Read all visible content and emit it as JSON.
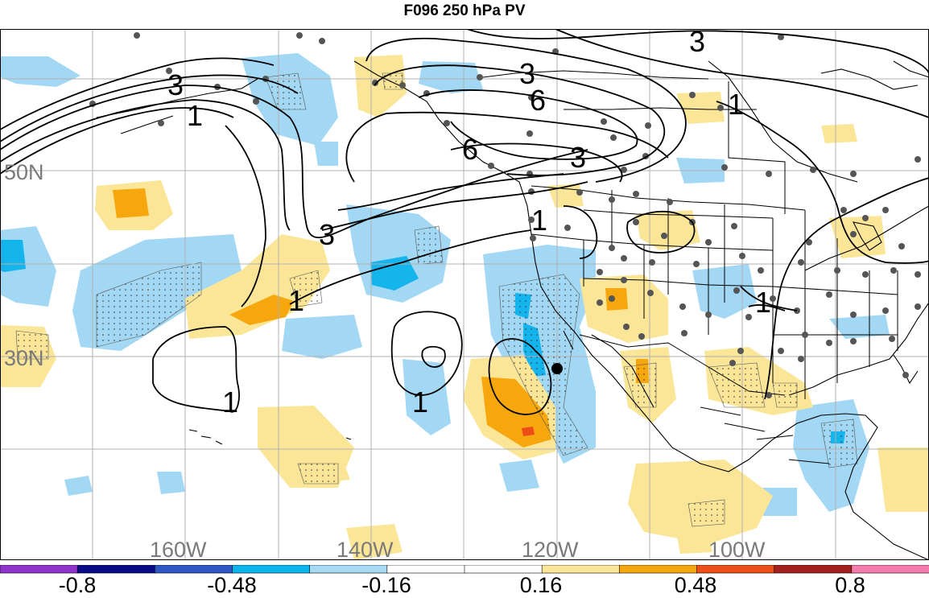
{
  "title": "F096 250 hPa PV",
  "map": {
    "lat_labels": [
      "50N",
      "30N"
    ],
    "lon_labels": [
      "160W",
      "140W",
      "120W",
      "100W"
    ],
    "contour_labels": [
      "3",
      "1",
      "3",
      "6",
      "3",
      "6",
      "3",
      "1",
      "1",
      "3",
      "1",
      "1",
      "1",
      "1"
    ],
    "shading": {
      "positive_light": "#fbe698",
      "positive_mid": "#f7a70e",
      "positive_strong": "#ee4d18",
      "negative_light": "#a3d8f4",
      "negative_mid": "#14b4ec"
    }
  },
  "colorbar": {
    "colors": [
      "#8f35cc",
      "#090b88",
      "#2f57c6",
      "#0cb4ee",
      "#a6d9f4",
      "#ffffff",
      "#ffffff",
      "#fbe697",
      "#f5a70e",
      "#ee5017",
      "#a4201f",
      "#f47bab"
    ],
    "labels": [
      "-0.8",
      "-0.48",
      "-0.16",
      "0.16",
      "0.48",
      "0.8"
    ]
  }
}
